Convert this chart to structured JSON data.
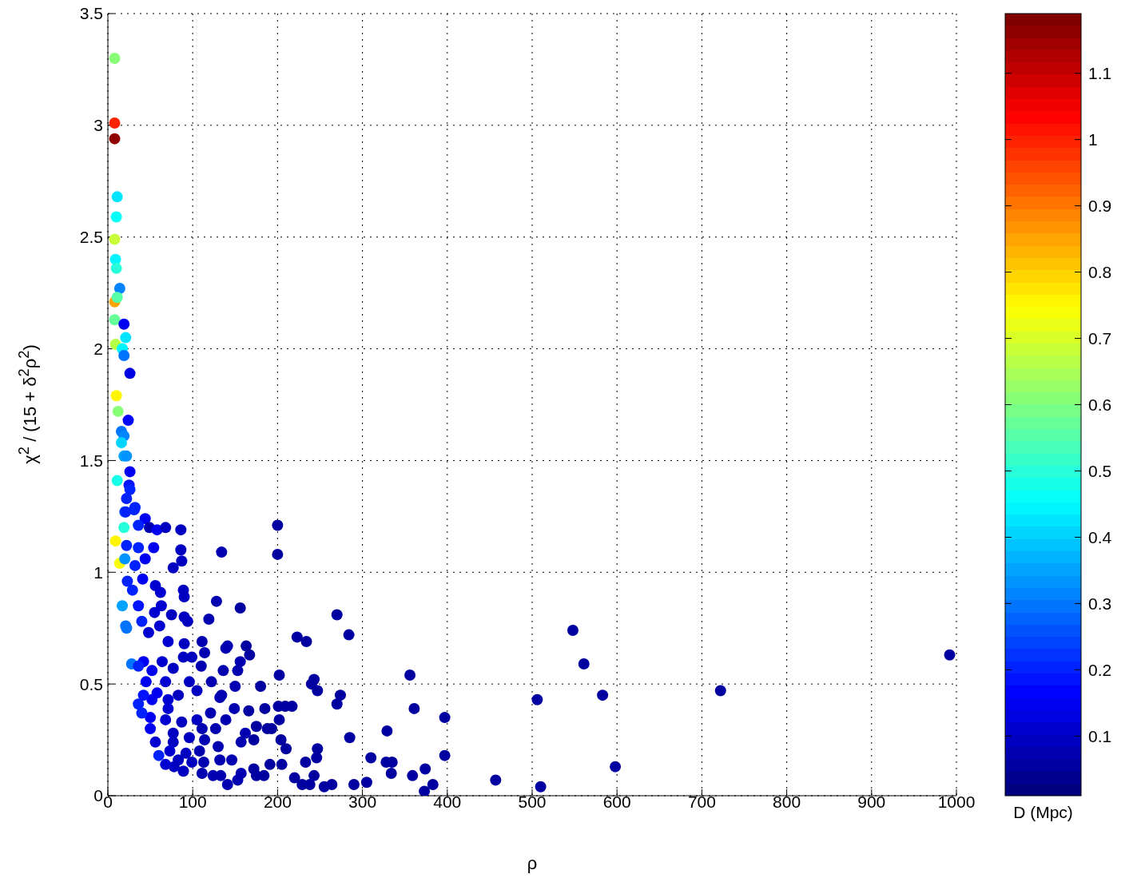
{
  "chart_data": {
    "type": "scatter",
    "xlabel": "ρ",
    "ylabel": "χ$^{2}$ / (15 + δ$^{2}$ρ$^{2}$)",
    "clabel": "D (Mpc)",
    "xlim": [
      0,
      1000
    ],
    "xticks": [
      0,
      100,
      200,
      300,
      400,
      500,
      600,
      700,
      800,
      900,
      1000
    ],
    "ylim": [
      0,
      3.5
    ],
    "yticks": [
      0,
      0.5,
      1,
      1.5,
      2,
      2.5,
      3,
      3.5
    ],
    "clim": [
      0.01,
      1.19
    ],
    "cticks": [
      0.1,
      0.2,
      0.3,
      0.4,
      0.5,
      0.6,
      0.7,
      0.8,
      0.9,
      1,
      1.1
    ],
    "grid": true,
    "marker": "circle",
    "x": [
      22,
      32,
      20,
      44,
      49,
      58,
      68,
      86,
      200,
      36,
      54,
      86,
      134,
      200,
      87,
      77,
      44,
      32,
      36,
      22,
      41,
      23,
      56,
      89,
      62,
      90,
      29,
      128,
      156,
      270,
      63,
      36,
      55,
      75,
      90,
      94,
      119,
      61,
      22,
      40,
      48,
      223,
      234,
      71,
      90,
      111,
      114,
      141,
      163,
      167,
      139,
      156,
      153,
      110,
      136,
      202,
      42,
      28,
      36,
      64,
      77,
      89,
      99,
      52,
      45,
      243,
      240,
      247,
      274,
      270,
      122,
      96,
      150,
      180,
      68,
      105,
      134,
      132,
      36,
      52,
      71,
      83,
      149,
      166,
      185,
      201,
      209,
      217,
      202,
      175,
      188,
      193,
      162,
      172,
      157,
      204,
      210,
      247,
      233,
      246,
      205,
      191,
      172,
      157,
      153,
      141,
      184,
      175,
      220,
      229,
      238,
      243,
      255,
      264,
      124,
      133,
      111,
      89,
      78,
      68,
      60,
      99,
      113,
      132,
      146,
      130,
      108,
      92,
      77,
      56,
      50,
      50,
      40,
      68,
      87,
      105,
      121,
      127,
      139,
      111,
      77,
      96,
      114,
      73,
      83,
      58,
      42,
      71,
      992,
      722,
      548,
      561,
      583,
      598,
      506,
      510,
      457,
      397,
      397,
      361,
      356,
      329,
      310,
      335,
      328,
      334,
      374,
      359,
      373,
      383,
      305,
      290,
      285,
      284,
      8,
      8,
      8,
      11,
      10,
      8,
      9,
      10,
      14,
      8,
      11,
      8,
      19,
      21,
      9,
      17,
      19,
      26,
      10,
      12,
      24,
      16,
      19,
      16,
      19,
      22,
      26,
      11,
      25,
      26,
      31,
      21,
      19,
      9,
      14,
      20,
      17,
      21
    ],
    "values": [
      1.33,
      1.29,
      1.27,
      1.24,
      1.2,
      1.19,
      1.2,
      1.19,
      1.21,
      1.21,
      1.11,
      1.1,
      1.09,
      1.08,
      1.05,
      1.02,
      1.06,
      1.03,
      1.11,
      1.12,
      0.97,
      0.96,
      0.94,
      0.92,
      0.91,
      0.89,
      0.92,
      0.87,
      0.84,
      0.81,
      0.85,
      0.85,
      0.82,
      0.81,
      0.8,
      0.78,
      0.79,
      0.76,
      0.75,
      0.78,
      0.73,
      0.71,
      0.69,
      0.69,
      0.68,
      0.69,
      0.64,
      0.67,
      0.67,
      0.63,
      0.66,
      0.6,
      0.56,
      0.58,
      0.56,
      0.54,
      0.6,
      0.59,
      0.58,
      0.6,
      0.57,
      0.62,
      0.62,
      0.56,
      0.51,
      0.52,
      0.5,
      0.47,
      0.45,
      0.41,
      0.51,
      0.51,
      0.49,
      0.49,
      0.51,
      0.47,
      0.45,
      0.44,
      0.41,
      0.43,
      0.43,
      0.45,
      0.39,
      0.38,
      0.39,
      0.4,
      0.4,
      0.4,
      0.34,
      0.31,
      0.3,
      0.3,
      0.28,
      0.25,
      0.24,
      0.25,
      0.21,
      0.21,
      0.15,
      0.17,
      0.14,
      0.14,
      0.12,
      0.1,
      0.07,
      0.05,
      0.09,
      0.09,
      0.08,
      0.05,
      0.05,
      0.09,
      0.04,
      0.05,
      0.09,
      0.09,
      0.1,
      0.11,
      0.13,
      0.14,
      0.18,
      0.15,
      0.15,
      0.16,
      0.16,
      0.22,
      0.2,
      0.19,
      0.24,
      0.24,
      0.3,
      0.35,
      0.37,
      0.34,
      0.33,
      0.34,
      0.37,
      0.3,
      0.34,
      0.3,
      0.28,
      0.26,
      0.25,
      0.2,
      0.16,
      0.46,
      0.45,
      0.39,
      0.63,
      0.47,
      0.74,
      0.59,
      0.45,
      0.13,
      0.43,
      0.04,
      0.07,
      0.35,
      0.18,
      0.39,
      0.54,
      0.29,
      0.17,
      0.15,
      0.15,
      0.1,
      0.12,
      0.09,
      0.02,
      0.05,
      0.06,
      0.05,
      0.26,
      0.72,
      3.3,
      3.01,
      2.94,
      2.68,
      2.59,
      2.49,
      2.4,
      2.36,
      2.27,
      2.21,
      2.23,
      2.13,
      2.11,
      2.05,
      2.02,
      2,
      1.97,
      1.89,
      1.79,
      1.72,
      1.68,
      1.63,
      1.61,
      1.58,
      1.52,
      1.52,
      1.45,
      1.41,
      1.39,
      1.37,
      1.28,
      1.27,
      1.2,
      1.14,
      1.04,
      1.06,
      0.85,
      0.76
    ],
    "cvalues": [
      0.2,
      0.2,
      0.25,
      0.15,
      0.08,
      0.15,
      0.1,
      0.1,
      0.05,
      0.2,
      0.15,
      0.1,
      0.07,
      0.05,
      0.1,
      0.1,
      0.15,
      0.2,
      0.2,
      0.2,
      0.15,
      0.2,
      0.12,
      0.1,
      0.12,
      0.1,
      0.2,
      0.08,
      0.06,
      0.05,
      0.12,
      0.18,
      0.12,
      0.1,
      0.1,
      0.1,
      0.08,
      0.12,
      0.3,
      0.2,
      0.12,
      0.05,
      0.05,
      0.12,
      0.1,
      0.08,
      0.08,
      0.07,
      0.06,
      0.06,
      0.07,
      0.07,
      0.07,
      0.08,
      0.07,
      0.05,
      0.15,
      0.3,
      0.2,
      0.12,
      0.1,
      0.1,
      0.1,
      0.15,
      0.15,
      0.05,
      0.05,
      0.05,
      0.05,
      0.05,
      0.08,
      0.1,
      0.07,
      0.06,
      0.12,
      0.1,
      0.08,
      0.08,
      0.2,
      0.15,
      0.12,
      0.1,
      0.07,
      0.06,
      0.06,
      0.05,
      0.05,
      0.05,
      0.05,
      0.06,
      0.06,
      0.06,
      0.07,
      0.06,
      0.07,
      0.05,
      0.05,
      0.05,
      0.05,
      0.05,
      0.05,
      0.06,
      0.06,
      0.07,
      0.07,
      0.07,
      0.06,
      0.06,
      0.05,
      0.05,
      0.05,
      0.05,
      0.05,
      0.05,
      0.08,
      0.08,
      0.08,
      0.1,
      0.1,
      0.12,
      0.2,
      0.1,
      0.08,
      0.08,
      0.07,
      0.08,
      0.08,
      0.1,
      0.1,
      0.12,
      0.15,
      0.15,
      0.2,
      0.12,
      0.1,
      0.1,
      0.08,
      0.08,
      0.07,
      0.08,
      0.1,
      0.1,
      0.08,
      0.12,
      0.1,
      0.15,
      0.18,
      0.12,
      0.05,
      0.05,
      0.05,
      0.05,
      0.05,
      0.05,
      0.05,
      0.05,
      0.05,
      0.05,
      0.05,
      0.05,
      0.05,
      0.05,
      0.05,
      0.05,
      0.05,
      0.05,
      0.05,
      0.05,
      0.05,
      0.05,
      0.05,
      0.05,
      0.05,
      0.05,
      0.6,
      1.0,
      1.17,
      0.43,
      0.46,
      0.68,
      0.45,
      0.5,
      0.32,
      0.85,
      0.55,
      0.57,
      0.15,
      0.42,
      0.67,
      0.44,
      0.3,
      0.13,
      0.75,
      0.6,
      0.17,
      0.3,
      0.32,
      0.4,
      0.35,
      0.33,
      0.15,
      0.48,
      0.18,
      0.2,
      0.2,
      0.2,
      0.5,
      0.75,
      0.73,
      0.33,
      0.35,
      0.3
    ]
  }
}
